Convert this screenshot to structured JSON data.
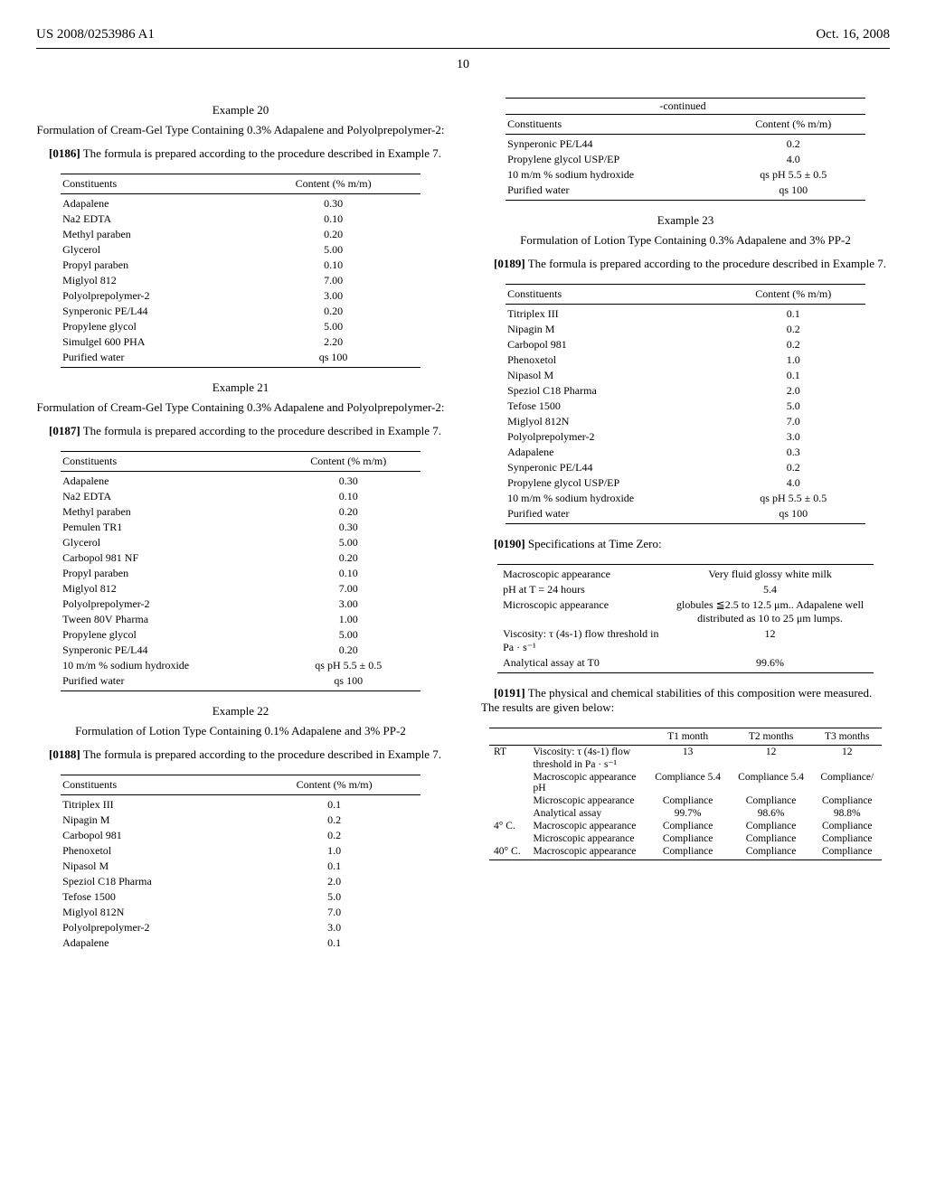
{
  "header": {
    "pub_no": "US 2008/0253986 A1",
    "date": "Oct. 16, 2008",
    "page": "10"
  },
  "left": {
    "ex20": {
      "title": "Example 20",
      "sub": "Formulation of Cream-Gel Type Containing 0.3% Adapalene and Polyolprepolymer-2:",
      "paraRef": "[0186]",
      "paraText": "The formula is prepared according to the procedure described in Example 7.",
      "col1": "Constituents",
      "col2": "Content (% m/m)",
      "rows": [
        [
          "Adapalene",
          "0.30"
        ],
        [
          "Na2 EDTA",
          "0.10"
        ],
        [
          "Methyl paraben",
          "0.20"
        ],
        [
          "Glycerol",
          "5.00"
        ],
        [
          "Propyl paraben",
          "0.10"
        ],
        [
          "Miglyol 812",
          "7.00"
        ],
        [
          "Polyolprepolymer-2",
          "3.00"
        ],
        [
          "Synperonic PE/L44",
          "0.20"
        ],
        [
          "Propylene glycol",
          "5.00"
        ],
        [
          "Simulgel 600 PHA",
          "2.20"
        ],
        [
          "Purified water",
          "qs 100"
        ]
      ]
    },
    "ex21": {
      "title": "Example 21",
      "sub": "Formulation of Cream-Gel Type Containing 0.3% Adapalene and Polyolprepolymer-2:",
      "paraRef": "[0187]",
      "paraText": "The formula is prepared according to the procedure described in Example 7.",
      "col1": "Constituents",
      "col2": "Content (% m/m)",
      "rows": [
        [
          "Adapalene",
          "0.30"
        ],
        [
          "Na2 EDTA",
          "0.10"
        ],
        [
          "Methyl paraben",
          "0.20"
        ],
        [
          "Pemulen TR1",
          "0.30"
        ],
        [
          "Glycerol",
          "5.00"
        ],
        [
          "Carbopol 981 NF",
          "0.20"
        ],
        [
          "Propyl paraben",
          "0.10"
        ],
        [
          "Miglyol 812",
          "7.00"
        ],
        [
          "Polyolprepolymer-2",
          "3.00"
        ],
        [
          "Tween 80V Pharma",
          "1.00"
        ],
        [
          "Propylene glycol",
          "5.00"
        ],
        [
          "Synperonic PE/L44",
          "0.20"
        ],
        [
          "10 m/m % sodium hydroxide",
          "qs pH 5.5 ± 0.5"
        ],
        [
          "Purified water",
          "qs 100"
        ]
      ]
    },
    "ex22": {
      "title": "Example 22",
      "sub": "Formulation of Lotion Type Containing 0.1% Adapalene and 3% PP-2",
      "paraRef": "[0188]",
      "paraText": "The formula is prepared according to the procedure described in Example 7.",
      "col1": "Constituents",
      "col2": "Content (% m/m)",
      "rows": [
        [
          "Titriplex III",
          "0.1"
        ],
        [
          "Nipagin M",
          "0.2"
        ],
        [
          "Carbopol 981",
          "0.2"
        ],
        [
          "Phenoxetol",
          "1.0"
        ],
        [
          "Nipasol M",
          "0.1"
        ],
        [
          "Speziol C18 Pharma",
          "2.0"
        ],
        [
          "Tefose 1500",
          "5.0"
        ],
        [
          "Miglyol 812N",
          "7.0"
        ],
        [
          "Polyolprepolymer-2",
          "3.0"
        ],
        [
          "Adapalene",
          "0.1"
        ]
      ]
    }
  },
  "right": {
    "ex22cont": {
      "continued": "-continued",
      "col1": "Constituents",
      "col2": "Content (% m/m)",
      "rows": [
        [
          "Synperonic PE/L44",
          "0.2"
        ],
        [
          "Propylene glycol USP/EP",
          "4.0"
        ],
        [
          "10 m/m % sodium hydroxide",
          "qs pH 5.5 ± 0.5"
        ],
        [
          "Purified water",
          "qs 100"
        ]
      ]
    },
    "ex23": {
      "title": "Example 23",
      "sub": "Formulation of Lotion Type Containing 0.3% Adapalene and 3% PP-2",
      "paraRef": "[0189]",
      "paraText": "The formula is prepared according to the procedure described in Example 7.",
      "col1": "Constituents",
      "col2": "Content (% m/m)",
      "rows": [
        [
          "Titriplex III",
          "0.1"
        ],
        [
          "Nipagin M",
          "0.2"
        ],
        [
          "Carbopol 981",
          "0.2"
        ],
        [
          "Phenoxetol",
          "1.0"
        ],
        [
          "Nipasol M",
          "0.1"
        ],
        [
          "Speziol C18 Pharma",
          "2.0"
        ],
        [
          "Tefose 1500",
          "5.0"
        ],
        [
          "Miglyol 812N",
          "7.0"
        ],
        [
          "Polyolprepolymer-2",
          "3.0"
        ],
        [
          "Adapalene",
          "0.3"
        ],
        [
          "Synperonic PE/L44",
          "0.2"
        ],
        [
          "Propylene glycol USP/EP",
          "4.0"
        ],
        [
          "10 m/m % sodium hydroxide",
          "qs pH 5.5 ± 0.5"
        ],
        [
          "Purified water",
          "qs 100"
        ]
      ]
    },
    "spec": {
      "paraRef": "[0190]",
      "paraText": "Specifications at Time Zero:",
      "rows": [
        [
          "Macroscopic appearance",
          "Very fluid glossy white milk"
        ],
        [
          "pH at T = 24 hours",
          "5.4"
        ],
        [
          "Microscopic appearance",
          "globules ≦2.5 to 12.5 μm.. Adapalene well distributed as 10 to 25 μm lumps."
        ],
        [
          "Viscosity: τ (4s-1) flow threshold in Pa · s⁻¹",
          "12"
        ],
        [
          "Analytical assay at T0",
          "99.6%"
        ]
      ]
    },
    "stability": {
      "paraRef": "[0191]",
      "paraText": "The physical and chemical stabilities of this composition were measured. The results are given below:",
      "headers": [
        "",
        "",
        "T1 month",
        "T2 months",
        "T3 months"
      ],
      "groups": [
        {
          "cond": "RT",
          "rows": [
            [
              "Viscosity: τ (4s-1) flow threshold in Pa · s⁻¹",
              "13",
              "12",
              "12"
            ],
            [
              "Macroscopic appearance pH",
              "Compliance 5.4",
              "Compliance 5.4",
              "Compliance/"
            ],
            [
              "Microscopic appearance",
              "Compliance",
              "Compliance",
              "Compliance"
            ],
            [
              "Analytical assay",
              "99.7%",
              "98.6%",
              "98.8%"
            ]
          ]
        },
        {
          "cond": "4° C.",
          "rows": [
            [
              "Macroscopic appearance",
              "Compliance",
              "Compliance",
              "Compliance"
            ],
            [
              "Microscopic appearance",
              "Compliance",
              "Compliance",
              "Compliance"
            ]
          ]
        },
        {
          "cond": "40° C.",
          "rows": [
            [
              "Macroscopic appearance",
              "Compliance",
              "Compliance",
              "Compliance"
            ]
          ]
        }
      ]
    }
  }
}
